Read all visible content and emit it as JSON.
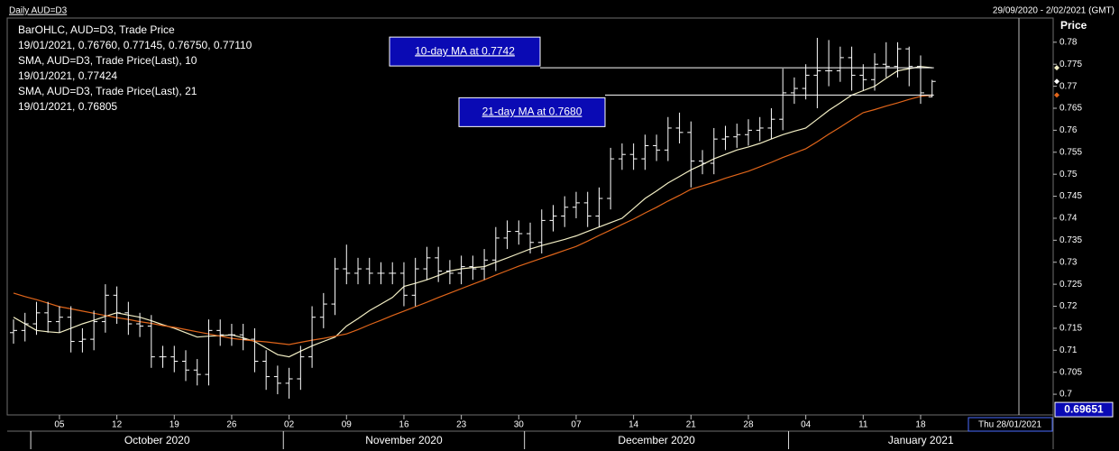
{
  "title": "Daily AUD=D3",
  "range_label": "29/09/2020 - 2/02/2021 (GMT)",
  "chart_data": {
    "type": "ohlc",
    "y_axis_label": "Price",
    "x": [
      "2020-09-29",
      "2020-09-30",
      "2020-10-01",
      "2020-10-02",
      "2020-10-05",
      "2020-10-06",
      "2020-10-07",
      "2020-10-08",
      "2020-10-09",
      "2020-10-12",
      "2020-10-13",
      "2020-10-14",
      "2020-10-15",
      "2020-10-16",
      "2020-10-19",
      "2020-10-20",
      "2020-10-21",
      "2020-10-22",
      "2020-10-23",
      "2020-10-26",
      "2020-10-27",
      "2020-10-28",
      "2020-10-29",
      "2020-10-30",
      "2020-11-02",
      "2020-11-03",
      "2020-11-04",
      "2020-11-05",
      "2020-11-06",
      "2020-11-09",
      "2020-11-10",
      "2020-11-11",
      "2020-11-12",
      "2020-11-13",
      "2020-11-16",
      "2020-11-17",
      "2020-11-18",
      "2020-11-19",
      "2020-11-20",
      "2020-11-23",
      "2020-11-24",
      "2020-11-25",
      "2020-11-26",
      "2020-11-27",
      "2020-11-30",
      "2020-12-01",
      "2020-12-02",
      "2020-12-03",
      "2020-12-04",
      "2020-12-07",
      "2020-12-08",
      "2020-12-09",
      "2020-12-10",
      "2020-12-11",
      "2020-12-14",
      "2020-12-15",
      "2020-12-16",
      "2020-12-17",
      "2020-12-18",
      "2020-12-21",
      "2020-12-22",
      "2020-12-23",
      "2020-12-24",
      "2020-12-25",
      "2020-12-28",
      "2020-12-29",
      "2020-12-30",
      "2020-12-31",
      "2021-01-01",
      "2021-01-04",
      "2021-01-05",
      "2021-01-06",
      "2021-01-07",
      "2021-01-08",
      "2021-01-11",
      "2021-01-12",
      "2021-01-13",
      "2021-01-14",
      "2021-01-15",
      "2021-01-18",
      "2021-01-19"
    ],
    "bars": {
      "name": "BarOHLC, AUD=D3, Trade Price",
      "last_label": "19/01/2021, 0.76760, 0.77145, 0.76750, 0.77110",
      "color": "#ffffff",
      "open": [
        0.714,
        0.7145,
        0.716,
        0.7185,
        0.7165,
        0.7175,
        0.712,
        0.7125,
        0.7165,
        0.7225,
        0.7185,
        0.716,
        0.7155,
        0.7085,
        0.7085,
        0.7075,
        0.7055,
        0.7045,
        0.7145,
        0.7135,
        0.7135,
        0.7125,
        0.7075,
        0.704,
        0.7025,
        0.7035,
        0.7085,
        0.7175,
        0.7205,
        0.7285,
        0.7275,
        0.7285,
        0.7275,
        0.7275,
        0.7275,
        0.7225,
        0.7285,
        0.731,
        0.728,
        0.7275,
        0.729,
        0.7285,
        0.7305,
        0.7355,
        0.737,
        0.7365,
        0.7345,
        0.7395,
        0.7405,
        0.7425,
        0.7435,
        0.7405,
        0.7445,
        0.7535,
        0.7545,
        0.7535,
        0.7565,
        0.7555,
        0.7605,
        0.7595,
        0.753,
        0.7525,
        0.758,
        0.7585,
        0.759,
        0.76,
        0.7605,
        0.7625,
        0.7685,
        0.7695,
        0.7725,
        0.7735,
        0.7735,
        0.7765,
        0.7725,
        0.7715,
        0.775,
        0.7745,
        0.7785,
        0.7745,
        0.7676
      ],
      "high": [
        0.717,
        0.7185,
        0.721,
        0.721,
        0.72,
        0.72,
        0.715,
        0.719,
        0.725,
        0.7245,
        0.721,
        0.7185,
        0.718,
        0.711,
        0.711,
        0.71,
        0.708,
        0.717,
        0.717,
        0.716,
        0.716,
        0.715,
        0.71,
        0.7065,
        0.706,
        0.711,
        0.72,
        0.723,
        0.731,
        0.734,
        0.731,
        0.731,
        0.73,
        0.73,
        0.73,
        0.731,
        0.7335,
        0.7335,
        0.7305,
        0.7315,
        0.7315,
        0.733,
        0.738,
        0.7395,
        0.7395,
        0.739,
        0.742,
        0.743,
        0.745,
        0.746,
        0.746,
        0.747,
        0.756,
        0.757,
        0.757,
        0.759,
        0.759,
        0.763,
        0.764,
        0.762,
        0.7555,
        0.7605,
        0.761,
        0.7615,
        0.7625,
        0.763,
        0.765,
        0.774,
        0.772,
        0.775,
        0.781,
        0.7805,
        0.779,
        0.779,
        0.775,
        0.7775,
        0.78,
        0.78,
        0.779,
        0.777,
        0.77145
      ],
      "low": [
        0.7115,
        0.712,
        0.7135,
        0.714,
        0.714,
        0.7095,
        0.7095,
        0.71,
        0.714,
        0.716,
        0.7135,
        0.713,
        0.706,
        0.706,
        0.705,
        0.703,
        0.702,
        0.702,
        0.711,
        0.711,
        0.71,
        0.705,
        0.701,
        0.7,
        0.699,
        0.701,
        0.706,
        0.715,
        0.718,
        0.725,
        0.725,
        0.725,
        0.725,
        0.725,
        0.72,
        0.72,
        0.726,
        0.7255,
        0.725,
        0.725,
        0.726,
        0.726,
        0.728,
        0.733,
        0.734,
        0.732,
        0.732,
        0.737,
        0.738,
        0.74,
        0.738,
        0.738,
        0.742,
        0.751,
        0.751,
        0.751,
        0.753,
        0.753,
        0.757,
        0.747,
        0.75,
        0.75,
        0.7555,
        0.756,
        0.7565,
        0.7575,
        0.758,
        0.76,
        0.766,
        0.767,
        0.765,
        0.77,
        0.771,
        0.769,
        0.769,
        0.769,
        0.772,
        0.772,
        0.77,
        0.766,
        0.7675
      ],
      "close": [
        0.7145,
        0.716,
        0.7185,
        0.7165,
        0.7175,
        0.712,
        0.7125,
        0.7165,
        0.7225,
        0.7185,
        0.716,
        0.7155,
        0.7085,
        0.7085,
        0.7075,
        0.7055,
        0.7045,
        0.7145,
        0.7135,
        0.7135,
        0.7125,
        0.7075,
        0.704,
        0.7025,
        0.7035,
        0.7085,
        0.7175,
        0.7205,
        0.7285,
        0.7275,
        0.7285,
        0.7275,
        0.7275,
        0.7275,
        0.7225,
        0.7285,
        0.731,
        0.728,
        0.7275,
        0.729,
        0.7285,
        0.7305,
        0.7355,
        0.737,
        0.7365,
        0.7345,
        0.7395,
        0.7405,
        0.7425,
        0.7435,
        0.7405,
        0.7445,
        0.7535,
        0.7545,
        0.7535,
        0.7565,
        0.7555,
        0.7605,
        0.7595,
        0.753,
        0.7525,
        0.758,
        0.7585,
        0.759,
        0.76,
        0.7605,
        0.7625,
        0.7685,
        0.7695,
        0.7725,
        0.7735,
        0.7735,
        0.7765,
        0.7725,
        0.7715,
        0.775,
        0.7745,
        0.7785,
        0.7745,
        0.7685,
        0.7711
      ]
    },
    "series": [
      {
        "name": "SMA, AUD=D3, Trade Price(Last),  10",
        "last_label": "19/01/2021, 0.77424",
        "color": "#f2eec4",
        "values": [
          0.7175,
          0.716,
          0.7145,
          0.7142,
          0.714,
          0.715,
          0.716,
          0.7168,
          0.7177,
          0.7185,
          0.718,
          0.7175,
          0.7167,
          0.7158,
          0.715,
          0.714,
          0.713,
          0.7132,
          0.7133,
          0.7135,
          0.7128,
          0.712,
          0.7105,
          0.709,
          0.7085,
          0.7098,
          0.711,
          0.712,
          0.713,
          0.7155,
          0.7172,
          0.719,
          0.7205,
          0.722,
          0.7245,
          0.7252,
          0.726,
          0.727,
          0.728,
          0.7285,
          0.7288,
          0.729,
          0.73,
          0.731,
          0.732,
          0.733,
          0.7338,
          0.7345,
          0.7352,
          0.736,
          0.737,
          0.738,
          0.739,
          0.74,
          0.7422,
          0.7445,
          0.7462,
          0.748,
          0.7495,
          0.751,
          0.7522,
          0.7535,
          0.7545,
          0.7555,
          0.7562,
          0.757,
          0.758,
          0.759,
          0.7598,
          0.7605,
          0.7625,
          0.7645,
          0.7662,
          0.768,
          0.769,
          0.77,
          0.7718,
          0.7735,
          0.774,
          0.7745,
          0.7742
        ]
      },
      {
        "name": "SMA, AUD=D3, Trade Price(Last),  21",
        "last_label": "19/01/2021, 0.76805",
        "color": "#e0651a",
        "values": [
          0.723,
          0.7222,
          0.7215,
          0.7207,
          0.7199,
          0.7194,
          0.7189,
          0.7184,
          0.7179,
          0.7174,
          0.717,
          0.7165,
          0.7161,
          0.7156,
          0.7152,
          0.7147,
          0.7142,
          0.7137,
          0.7132,
          0.7127,
          0.7124,
          0.7121,
          0.7119,
          0.7116,
          0.7113,
          0.7118,
          0.7123,
          0.7127,
          0.7132,
          0.7137,
          0.7147,
          0.7158,
          0.7168,
          0.7179,
          0.7189,
          0.7199,
          0.7209,
          0.722,
          0.723,
          0.724,
          0.725,
          0.726,
          0.7271,
          0.7281,
          0.7291,
          0.73,
          0.7309,
          0.7318,
          0.7327,
          0.7336,
          0.7348,
          0.7361,
          0.7373,
          0.7386,
          0.7398,
          0.7412,
          0.7425,
          0.7439,
          0.7452,
          0.7466,
          0.7474,
          0.7482,
          0.7491,
          0.7499,
          0.7507,
          0.7517,
          0.7527,
          0.7538,
          0.7548,
          0.7558,
          0.7574,
          0.7591,
          0.7607,
          0.7624,
          0.764,
          0.7647,
          0.7655,
          0.7662,
          0.767,
          0.7677,
          0.768
        ]
      }
    ],
    "ylim": [
      0.6953,
      0.7855
    ],
    "yticks": [
      0.7,
      0.705,
      0.71,
      0.715,
      0.72,
      0.725,
      0.73,
      0.735,
      0.74,
      0.745,
      0.75,
      0.755,
      0.76,
      0.765,
      0.77,
      0.775,
      0.78
    ],
    "xticks": [
      {
        "value": "2020-10-05",
        "label": "05"
      },
      {
        "value": "2020-10-12",
        "label": "12"
      },
      {
        "value": "2020-10-19",
        "label": "19"
      },
      {
        "value": "2020-10-26",
        "label": "26"
      },
      {
        "value": "2020-11-02",
        "label": "02"
      },
      {
        "value": "2020-11-09",
        "label": "09"
      },
      {
        "value": "2020-11-16",
        "label": "16"
      },
      {
        "value": "2020-11-23",
        "label": "23"
      },
      {
        "value": "2020-11-30",
        "label": "30"
      },
      {
        "value": "2020-12-07",
        "label": "07"
      },
      {
        "value": "2020-12-14",
        "label": "14"
      },
      {
        "value": "2020-12-21",
        "label": "21"
      },
      {
        "value": "2020-12-28",
        "label": "28"
      },
      {
        "value": "2021-01-04",
        "label": "04"
      },
      {
        "value": "2021-01-11",
        "label": "11"
      },
      {
        "value": "2021-01-18",
        "label": "18"
      }
    ],
    "months": [
      {
        "start": "2020-10-01",
        "label": "October 2020"
      },
      {
        "start": "2020-11-02",
        "label": "November 2020"
      },
      {
        "start": "2020-12-01",
        "label": "December 2020"
      },
      {
        "start": "2021-01-01",
        "label": "January 2021"
      }
    ],
    "annotations": [
      {
        "text": "10-day MA at 0.7742",
        "value": 0.7742
      },
      {
        "text": "21-day MA at 0.7680",
        "value": 0.768
      }
    ],
    "cursor": {
      "label": "Thu 28/01/2021",
      "value": 0.69651
    }
  }
}
